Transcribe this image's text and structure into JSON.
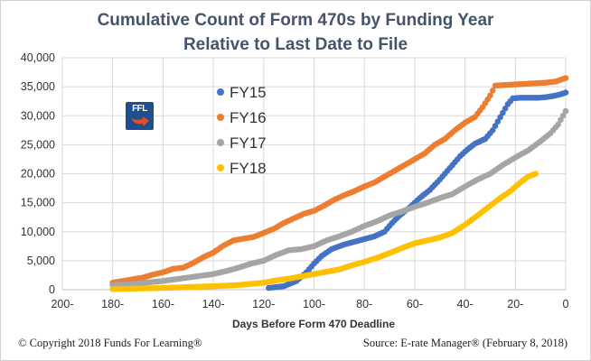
{
  "chart_data": {
    "type": "scatter",
    "title": "Cumulative Count of Form 470s by Funding Year",
    "subtitle": "Relative to Last Date to File",
    "xlabel": "Days Before Form 470 Deadline",
    "ylabel": "",
    "x_reversed": true,
    "xlim": [
      200,
      0
    ],
    "ylim": [
      0,
      40000
    ],
    "x_ticks": [
      "200-",
      "180-",
      "160-",
      "140-",
      "120-",
      "100-",
      "80-",
      "60-",
      "40-",
      "20-",
      "0"
    ],
    "x_tick_values": [
      200,
      180,
      160,
      140,
      120,
      100,
      80,
      60,
      40,
      20,
      0
    ],
    "y_ticks": [
      "0",
      "5,000",
      "10,000",
      "15,000",
      "20,000",
      "25,000",
      "30,000",
      "35,000",
      "40,000"
    ],
    "y_tick_values": [
      0,
      5000,
      10000,
      15000,
      20000,
      25000,
      30000,
      35000,
      40000
    ],
    "grid": "both",
    "legend_position": "top-left",
    "series": [
      {
        "name": "FY15",
        "color": "#4472c4",
        "points": [
          [
            118,
            300
          ],
          [
            112,
            600
          ],
          [
            107,
            1500
          ],
          [
            103,
            3000
          ],
          [
            100,
            4500
          ],
          [
            97,
            5800
          ],
          [
            93,
            7000
          ],
          [
            88,
            7800
          ],
          [
            82,
            8500
          ],
          [
            76,
            9200
          ],
          [
            72,
            10000
          ],
          [
            69,
            11500
          ],
          [
            66,
            12800
          ],
          [
            62,
            14200
          ],
          [
            58,
            15800
          ],
          [
            54,
            17200
          ],
          [
            50,
            19000
          ],
          [
            46,
            21000
          ],
          [
            42,
            23000
          ],
          [
            39,
            24200
          ],
          [
            36,
            25200
          ],
          [
            32,
            26000
          ],
          [
            29,
            27500
          ],
          [
            27,
            29000
          ],
          [
            25,
            30500
          ],
          [
            23,
            32000
          ],
          [
            21,
            33000
          ],
          [
            18,
            33100
          ],
          [
            14,
            33100
          ],
          [
            11,
            33100
          ],
          [
            8,
            33200
          ],
          [
            5,
            33400
          ],
          [
            2,
            33700
          ],
          [
            0,
            34000
          ]
        ]
      },
      {
        "name": "FY16",
        "color": "#ed7d31",
        "points": [
          [
            180,
            1200
          ],
          [
            176,
            1500
          ],
          [
            172,
            1800
          ],
          [
            168,
            2100
          ],
          [
            164,
            2600
          ],
          [
            160,
            3000
          ],
          [
            156,
            3600
          ],
          [
            152,
            3800
          ],
          [
            148,
            4600
          ],
          [
            144,
            5600
          ],
          [
            140,
            6400
          ],
          [
            136,
            7600
          ],
          [
            132,
            8500
          ],
          [
            128,
            8800
          ],
          [
            124,
            9100
          ],
          [
            120,
            9800
          ],
          [
            116,
            10500
          ],
          [
            112,
            11500
          ],
          [
            108,
            12300
          ],
          [
            104,
            13100
          ],
          [
            100,
            13600
          ],
          [
            96,
            14500
          ],
          [
            92,
            15500
          ],
          [
            88,
            16300
          ],
          [
            84,
            17000
          ],
          [
            80,
            17800
          ],
          [
            76,
            18500
          ],
          [
            72,
            19500
          ],
          [
            68,
            20500
          ],
          [
            64,
            21500
          ],
          [
            60,
            22500
          ],
          [
            56,
            23500
          ],
          [
            52,
            25000
          ],
          [
            48,
            26000
          ],
          [
            44,
            27500
          ],
          [
            40,
            28800
          ],
          [
            36,
            29800
          ],
          [
            33,
            31500
          ],
          [
            30,
            33500
          ],
          [
            28,
            35200
          ],
          [
            24,
            35300
          ],
          [
            20,
            35400
          ],
          [
            16,
            35500
          ],
          [
            12,
            35600
          ],
          [
            8,
            35700
          ],
          [
            4,
            35900
          ],
          [
            0,
            36500
          ]
        ]
      },
      {
        "name": "FY17",
        "color": "#a5a5a5",
        "points": [
          [
            180,
            800
          ],
          [
            175,
            900
          ],
          [
            170,
            1100
          ],
          [
            165,
            1300
          ],
          [
            160,
            1500
          ],
          [
            155,
            1800
          ],
          [
            150,
            2100
          ],
          [
            145,
            2400
          ],
          [
            140,
            2700
          ],
          [
            135,
            3200
          ],
          [
            130,
            3800
          ],
          [
            125,
            4500
          ],
          [
            120,
            5000
          ],
          [
            115,
            6000
          ],
          [
            110,
            6800
          ],
          [
            105,
            7000
          ],
          [
            100,
            7500
          ],
          [
            95,
            8500
          ],
          [
            90,
            9200
          ],
          [
            85,
            10000
          ],
          [
            80,
            11000
          ],
          [
            75,
            11800
          ],
          [
            70,
            12800
          ],
          [
            65,
            13500
          ],
          [
            60,
            14300
          ],
          [
            55,
            15000
          ],
          [
            50,
            15800
          ],
          [
            45,
            16500
          ],
          [
            40,
            17800
          ],
          [
            35,
            19000
          ],
          [
            30,
            20000
          ],
          [
            25,
            21500
          ],
          [
            20,
            22800
          ],
          [
            15,
            24000
          ],
          [
            10,
            25600
          ],
          [
            6,
            27000
          ],
          [
            3,
            28500
          ],
          [
            0,
            30800
          ]
        ]
      },
      {
        "name": "FY18",
        "color": "#ffc000",
        "points": [
          [
            180,
            100
          ],
          [
            170,
            200
          ],
          [
            160,
            300
          ],
          [
            150,
            450
          ],
          [
            140,
            600
          ],
          [
            130,
            800
          ],
          [
            120,
            1200
          ],
          [
            115,
            1600
          ],
          [
            110,
            1900
          ],
          [
            105,
            2300
          ],
          [
            100,
            2700
          ],
          [
            95,
            3100
          ],
          [
            90,
            3500
          ],
          [
            85,
            4200
          ],
          [
            80,
            4800
          ],
          [
            75,
            5500
          ],
          [
            70,
            6300
          ],
          [
            65,
            7200
          ],
          [
            60,
            8000
          ],
          [
            55,
            8500
          ],
          [
            50,
            9000
          ],
          [
            45,
            9800
          ],
          [
            40,
            11200
          ],
          [
            35,
            12800
          ],
          [
            30,
            14500
          ],
          [
            26,
            15800
          ],
          [
            22,
            17000
          ],
          [
            18,
            18500
          ],
          [
            15,
            19500
          ],
          [
            12,
            20000
          ]
        ]
      }
    ]
  },
  "page": {
    "copyright": "© Copyright 2018 Funds For Learning®",
    "source": "Source: E-rate Manager® (February 8, 2018)",
    "logo_text": "FFL",
    "logo_icon": "ffl-logo-icon"
  }
}
